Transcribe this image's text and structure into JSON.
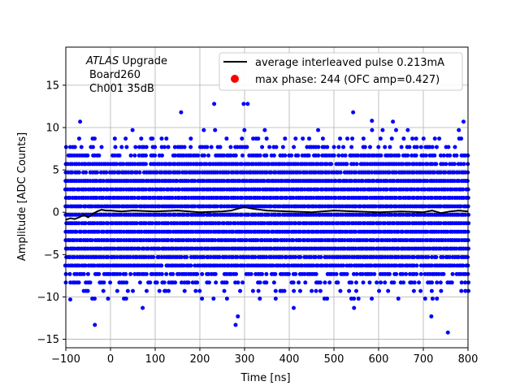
{
  "chart_data": {
    "type": "scatter",
    "title": "",
    "xlabel": "Time [ns]",
    "ylabel": "Amplitude [ADC Counts]",
    "xlim": [
      -100,
      800
    ],
    "ylim": [
      -16,
      19.5
    ],
    "xticks": [
      -100,
      0,
      100,
      200,
      300,
      400,
      500,
      600,
      700,
      800
    ],
    "yticks": [
      -15,
      -10,
      -5,
      0,
      5,
      10,
      15
    ],
    "grid": true,
    "legend_position": "top-right",
    "annotation_lines": [
      "ATLAS Upgrade",
      "Board260",
      "Ch001 35dB"
    ],
    "series": [
      {
        "name": "average interleaved pulse 0.213mA",
        "kind": "line",
        "color": "#000000",
        "x": [
          -100,
          -90,
          -80,
          -70,
          -60,
          -50,
          -40,
          -30,
          -20,
          -10,
          0,
          25,
          50,
          100,
          150,
          200,
          250,
          270,
          290,
          300,
          320,
          350,
          400,
          450,
          500,
          550,
          600,
          650,
          700,
          720,
          740,
          760,
          780,
          800
        ],
        "y": [
          -0.9,
          -0.7,
          -0.8,
          -0.6,
          -0.3,
          -0.6,
          -0.2,
          0.1,
          0.3,
          0.2,
          0.2,
          0.1,
          0.2,
          0.1,
          0.2,
          0.0,
          0.1,
          0.2,
          0.5,
          0.6,
          0.4,
          0.2,
          0.1,
          0.0,
          0.2,
          0.1,
          0.0,
          0.1,
          0.0,
          0.2,
          -0.1,
          0.1,
          0.2,
          0.1
        ]
      },
      {
        "name": "max phase: 244 (OFC amp=0.427)",
        "kind": "marker",
        "color": "#ff0000",
        "x": [],
        "y": []
      },
      {
        "name": "",
        "kind": "scatter",
        "color": "#0000ff",
        "sample_levels_y": [
          -13.2,
          -12.2,
          -11.2,
          -10.2,
          -9.3,
          -8.3,
          -7.3,
          -6.3,
          -5.3,
          -4.3,
          -3.3,
          -2.3,
          -1.3,
          -0.3,
          0.7,
          1.7,
          2.7,
          3.7,
          4.7,
          5.7,
          6.7,
          7.7,
          8.7,
          9.7,
          10.7,
          11.7,
          12.7
        ],
        "outliers": [
          {
            "x": -35,
            "y": -13.3
          },
          {
            "x": 280,
            "y": -13.3
          },
          {
            "x": 285,
            "y": -12.3
          },
          {
            "x": 718,
            "y": -12.3
          },
          {
            "x": 545,
            "y": -11.3
          },
          {
            "x": 755,
            "y": -14.2
          },
          {
            "x": 158,
            "y": 11.8
          },
          {
            "x": 232,
            "y": 12.8
          },
          {
            "x": 298,
            "y": 12.8
          },
          {
            "x": 307,
            "y": 12.8
          },
          {
            "x": 543,
            "y": 11.8
          },
          {
            "x": 585,
            "y": 10.8
          },
          {
            "x": 632,
            "y": 10.7
          },
          {
            "x": 790,
            "y": 10.7
          },
          {
            "x": -68,
            "y": 10.7
          },
          {
            "x": -90,
            "y": -10.3
          },
          {
            "x": 72,
            "y": -11.3
          },
          {
            "x": 410,
            "y": -11.3
          }
        ]
      }
    ]
  }
}
